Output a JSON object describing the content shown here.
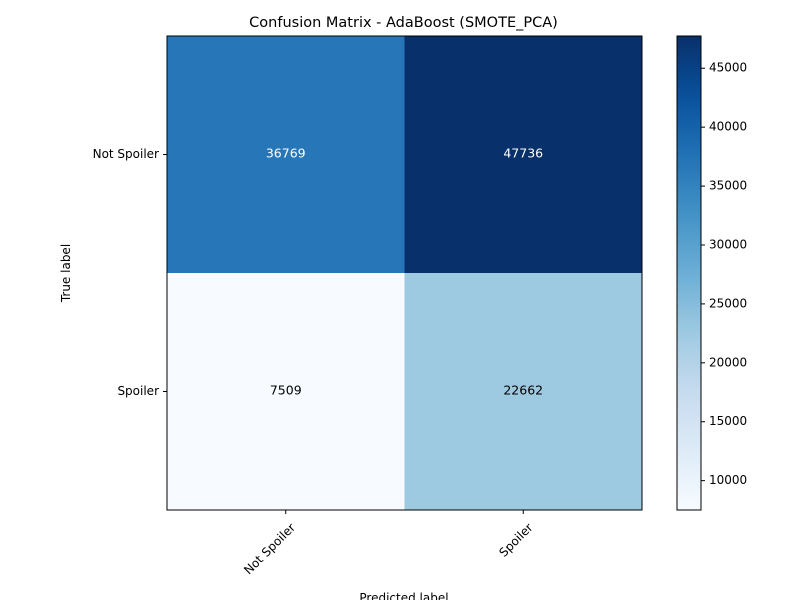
{
  "chart_data": {
    "type": "heatmap",
    "title": "Confusion Matrix - AdaBoost (SMOTE_PCA)",
    "xlabel": "Predicted label",
    "ylabel": "True label",
    "x_categories": [
      "Not Spoiler",
      "Spoiler"
    ],
    "y_categories": [
      "Not Spoiler",
      "Spoiler"
    ],
    "matrix": [
      [
        36769,
        47736
      ],
      [
        7509,
        22662
      ]
    ],
    "colormap": "Blues",
    "colorbar": {
      "range": [
        7509,
        47736
      ],
      "ticks": [
        10000,
        15000,
        20000,
        25000,
        30000,
        35000,
        40000,
        45000
      ]
    },
    "text_colors": {
      "dark_cell": "#ffffff",
      "light_cell": "#000000"
    }
  }
}
